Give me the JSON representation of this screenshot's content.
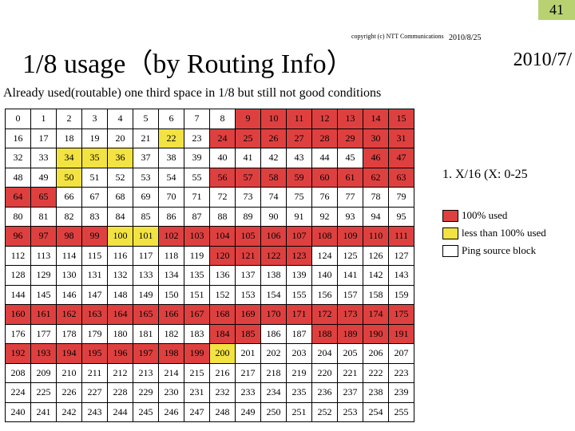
{
  "pagenum": "41",
  "copyright": "copyright (c) NTT\nCommunications",
  "date1": "2010/8/25",
  "title": "1/8 usage（by Routing Info）",
  "date2": "2010/7/",
  "subtitle": "Already used(routable) one third space in 1/8 but still not good conditions",
  "note1": "1. X/16 (X: 0-25",
  "legend": [
    {
      "color": "#de4040",
      "label": "100% used"
    },
    {
      "color": "#f2e242",
      "label": "less than 100% used"
    },
    {
      "color": "#ffffff",
      "label": "Ping source block"
    }
  ],
  "colors": {
    "red": "#de4040",
    "yellow": "#f2e242"
  },
  "grid": {
    "cols": 16,
    "rows": 16,
    "red": [
      9,
      10,
      11,
      12,
      13,
      14,
      15,
      24,
      25,
      26,
      27,
      28,
      29,
      30,
      31,
      46,
      47,
      56,
      57,
      58,
      59,
      60,
      61,
      62,
      63,
      64,
      65,
      96,
      97,
      98,
      99,
      102,
      103,
      104,
      105,
      106,
      107,
      108,
      109,
      110,
      111,
      120,
      121,
      122,
      123,
      160,
      161,
      162,
      163,
      164,
      165,
      166,
      167,
      168,
      169,
      170,
      171,
      172,
      173,
      174,
      175,
      184,
      185,
      188,
      189,
      190,
      191,
      192,
      193,
      194,
      195,
      196,
      197,
      198,
      199
    ],
    "yellow": [
      22,
      34,
      35,
      36,
      50,
      100,
      101,
      200
    ]
  }
}
